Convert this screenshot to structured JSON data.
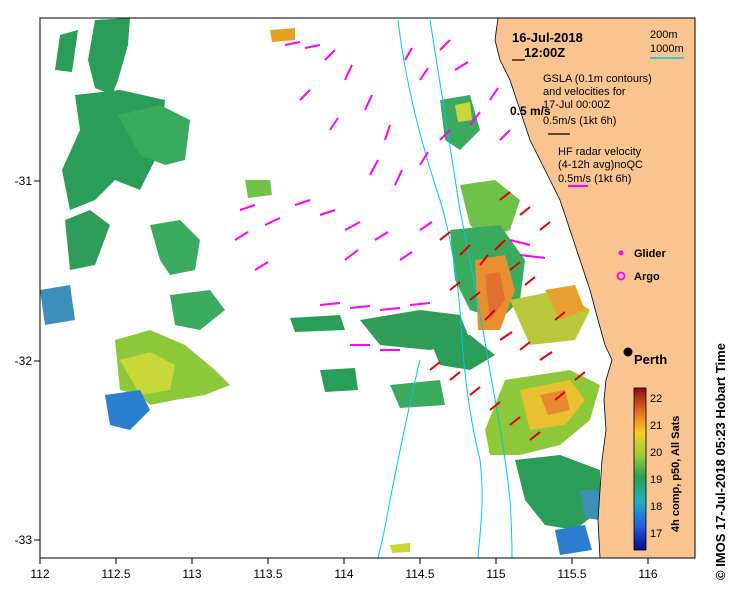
{
  "header": {
    "date": "16-Jul-2018",
    "time": "12:00Z"
  },
  "bathy_legend": {
    "line1": "200m",
    "line2": "1000m"
  },
  "gsla": {
    "line1": "GSLA (0.1m contours)",
    "line2": "and velocities for",
    "line3": "17-Jul 00:00Z",
    "line4": "0.5m/s (1kt 6h)",
    "scale_overlay": "0.5 m/s"
  },
  "hf_radar": {
    "line1": "HF radar velocity",
    "line2": "(4-12h avg)noQC",
    "line3": "0.5m/s (1kt 6h)"
  },
  "markers": {
    "glider": "Glider",
    "argo": "Argo",
    "city": "Perth"
  },
  "axes": {
    "x_ticks": [
      "112",
      "112.5",
      "113",
      "113.5",
      "114",
      "114.5",
      "115",
      "115.5",
      "116"
    ],
    "y_ticks": [
      "-31",
      "-32",
      "-33"
    ]
  },
  "colorbar": {
    "ticks": [
      "22",
      "21",
      "20",
      "19",
      "18",
      "17"
    ],
    "caption": "4h comp, p50, All Sats",
    "min": 16.5,
    "max": 22.5
  },
  "side_text": "© IMOS 17-Jul-2018 05:23 Hobart Time",
  "colors": {
    "land": "#F9C490",
    "radar_vector": "#FF00FF",
    "glider_vector": "#DD0000",
    "bathymetry": "#00C8E0"
  }
}
